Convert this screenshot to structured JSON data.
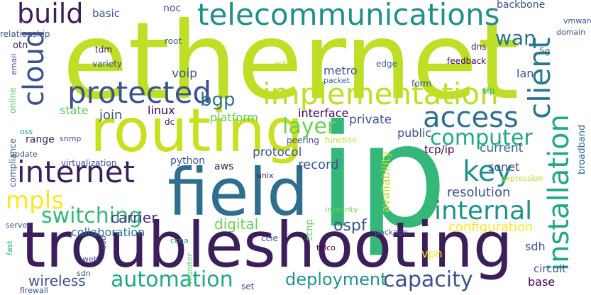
{
  "words": [
    {
      "text": "ethernet",
      "color": "#bddf26"
    },
    {
      "text": "ip",
      "color": "#35b779"
    },
    {
      "text": "routing",
      "color": "#c8e020"
    },
    {
      "text": "troubleshooting",
      "color": "#3b1e5a"
    },
    {
      "text": "field",
      "color": "#2e6f8e"
    },
    {
      "text": "telecommunications",
      "color": "#21908d"
    },
    {
      "text": "implementation",
      "color": "#bddf26"
    },
    {
      "text": "protected",
      "color": "#3b528b"
    },
    {
      "text": "access",
      "color": "#2c728e"
    },
    {
      "text": "internet",
      "color": "#3b1e5a"
    },
    {
      "text": "client",
      "color": "#2a788e"
    },
    {
      "text": "installation",
      "color": "#22a884"
    },
    {
      "text": "cloud",
      "color": "#3b528b"
    },
    {
      "text": "build",
      "color": "#3b1e5a"
    },
    {
      "text": "internal",
      "color": "#20928c"
    },
    {
      "text": "computer",
      "color": "#22a884"
    },
    {
      "text": "key",
      "color": "#21918c"
    },
    {
      "text": "automation",
      "color": "#22a884"
    },
    {
      "text": "capacity",
      "color": "#3b528b"
    },
    {
      "text": "mpls",
      "color": "#fde725"
    },
    {
      "text": "switching",
      "color": "#35b779"
    },
    {
      "text": "layer",
      "color": "#6ece58"
    },
    {
      "text": "wan",
      "color": "#2c728e"
    },
    {
      "text": "bgp",
      "color": "#2c728e"
    },
    {
      "text": "deployment",
      "color": "#21918c"
    },
    {
      "text": "configuration",
      "color": "#fde725"
    },
    {
      "text": "ospf",
      "color": "#3b528b"
    },
    {
      "text": "carrier",
      "color": "#472d7b"
    },
    {
      "text": "collaboration",
      "color": "#2c728e"
    },
    {
      "text": "resolution",
      "color": "#3b528b"
    },
    {
      "text": "digital",
      "color": "#6ece58"
    },
    {
      "text": "wireless",
      "color": "#3b528b"
    },
    {
      "text": "record",
      "color": "#3b528b"
    },
    {
      "text": "protocol",
      "color": "#3b528b"
    },
    {
      "text": "availability",
      "color": "#bddf26"
    },
    {
      "text": "broadband",
      "color": "#31688e"
    },
    {
      "text": "join",
      "color": "#3b528b"
    },
    {
      "text": "current",
      "color": "#31688e"
    },
    {
      "text": "tcp/ip",
      "color": "#440154"
    },
    {
      "text": "sonet",
      "color": "#3b528b"
    },
    {
      "text": "voip",
      "color": "#3b528b"
    },
    {
      "text": "metro",
      "color": "#3b528b"
    },
    {
      "text": "private",
      "color": "#3b528b"
    },
    {
      "text": "public",
      "color": "#3b528b"
    },
    {
      "text": "interface",
      "color": "#440154"
    },
    {
      "text": "linux",
      "color": "#440154"
    },
    {
      "text": "state",
      "color": "#5ec962"
    },
    {
      "text": "platform",
      "color": "#5ec962"
    },
    {
      "text": "lan",
      "color": "#3b528b"
    },
    {
      "text": "backbone",
      "color": "#3b528b"
    },
    {
      "text": "noc",
      "color": "#3b528b"
    },
    {
      "text": "basic",
      "color": "#3b528b"
    },
    {
      "text": "aws",
      "color": "#3b1e5a"
    },
    {
      "text": "range",
      "color": "#3b1e5a"
    },
    {
      "text": "python",
      "color": "#3b528b"
    },
    {
      "text": "ccnp",
      "color": "#5ec962"
    },
    {
      "text": "compliance",
      "color": "#3b528b"
    },
    {
      "text": "online",
      "color": "#5ec962"
    },
    {
      "text": "email",
      "color": "#3b528b"
    },
    {
      "text": "otn",
      "color": "#3b1e5a"
    },
    {
      "text": "relationship",
      "color": "#3b528b"
    },
    {
      "text": "root",
      "color": "#3b528b"
    },
    {
      "text": "tdm",
      "color": "#3b1e5a"
    },
    {
      "text": "variety",
      "color": "#3b528b"
    },
    {
      "text": "act",
      "color": "#bddf26"
    },
    {
      "text": "edge",
      "color": "#31688e"
    },
    {
      "text": "dns",
      "color": "#3b1e5a"
    },
    {
      "text": "feedback",
      "color": "#440154"
    },
    {
      "text": "form",
      "color": "#3b528b"
    },
    {
      "text": "packet",
      "color": "#31688e"
    },
    {
      "text": "sip",
      "color": "#22a884"
    },
    {
      "text": "vmware",
      "color": "#3b528b"
    },
    {
      "text": "domain",
      "color": "#3b528b"
    },
    {
      "text": "5g",
      "color": "#31688e"
    },
    {
      "text": "virtualization",
      "color": "#3b528b"
    },
    {
      "text": "snmp",
      "color": "#3b528b"
    },
    {
      "text": "oss",
      "color": "#22a884"
    },
    {
      "text": "update",
      "color": "#3b528b"
    },
    {
      "text": "peering",
      "color": "#3b528b"
    },
    {
      "text": "function",
      "color": "#bddf26"
    },
    {
      "text": "dc",
      "color": "#3b1e5a"
    },
    {
      "text": "unix",
      "color": "#3b1e5a"
    },
    {
      "text": "expression",
      "color": "#bddf26"
    },
    {
      "text": "integrity",
      "color": "#6ece58"
    },
    {
      "text": "ccna",
      "color": "#22a884"
    },
    {
      "text": "ccie",
      "color": "#3b528b"
    },
    {
      "text": "telco",
      "color": "#440154"
    },
    {
      "text": "package",
      "color": "#3b528b"
    },
    {
      "text": "server",
      "color": "#3b528b"
    },
    {
      "text": "fast",
      "color": "#22a884"
    },
    {
      "text": "web",
      "color": "#3b528b"
    },
    {
      "text": "qos",
      "color": "#3b528b"
    },
    {
      "text": "monitor",
      "color": "#5ec962"
    },
    {
      "text": "sdn",
      "color": "#3b528b"
    },
    {
      "text": "firewall",
      "color": "#3b528b"
    },
    {
      "text": "set",
      "color": "#3b528b"
    },
    {
      "text": "vpn",
      "color": "#fde725"
    },
    {
      "text": "sdh",
      "color": "#3b528b"
    },
    {
      "text": "circuit",
      "color": "#3b528b"
    },
    {
      "text": "base",
      "color": "#440154"
    }
  ]
}
